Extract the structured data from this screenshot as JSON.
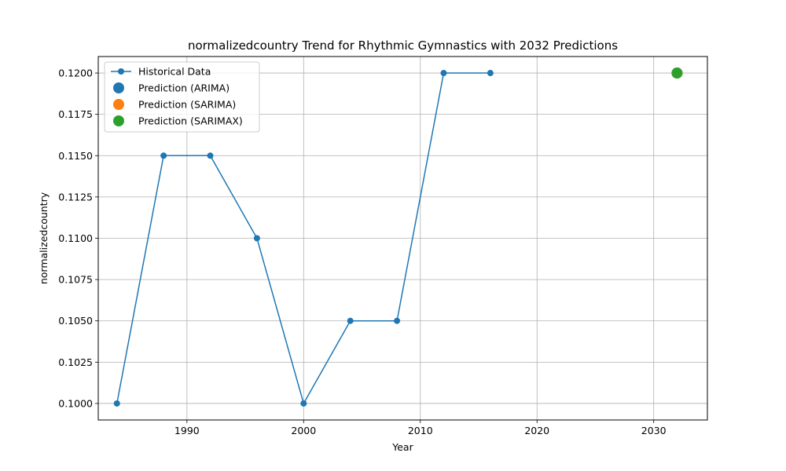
{
  "chart_data": {
    "type": "line",
    "title": "normalizedcountry Trend for Rhythmic Gymnastics with 2032 Predictions",
    "xlabel": "Year",
    "ylabel": "normalizedcountry",
    "xlim": [
      1982.4,
      2034.6
    ],
    "ylim": [
      0.099,
      0.121
    ],
    "x_ticks": [
      1990,
      2000,
      2010,
      2020,
      2030
    ],
    "y_ticks": [
      0.1,
      0.1025,
      0.105,
      0.1075,
      0.11,
      0.1125,
      0.115,
      0.1175,
      0.12
    ],
    "y_tick_decimals": 4,
    "grid": true,
    "legend_position": "top-left",
    "series": [
      {
        "name": "Historical Data",
        "kind": "line",
        "color": "#1f77b4",
        "x": [
          1984,
          1988,
          1992,
          1996,
          2000,
          2004,
          2008,
          2012,
          2016
        ],
        "y": [
          0.1,
          0.115,
          0.115,
          0.11,
          0.1,
          0.105,
          0.105,
          0.12,
          0.12
        ]
      },
      {
        "name": "Prediction (ARIMA)",
        "kind": "scatter",
        "color": "#1f77b4",
        "x": [
          2032
        ],
        "y": [
          0.12
        ]
      },
      {
        "name": "Prediction (SARIMA)",
        "kind": "scatter",
        "color": "#ff7f0e",
        "x": [
          2032
        ],
        "y": [
          0.12
        ]
      },
      {
        "name": "Prediction (SARIMAX)",
        "kind": "scatter",
        "color": "#2ca02c",
        "x": [
          2032
        ],
        "y": [
          0.12
        ]
      }
    ]
  }
}
